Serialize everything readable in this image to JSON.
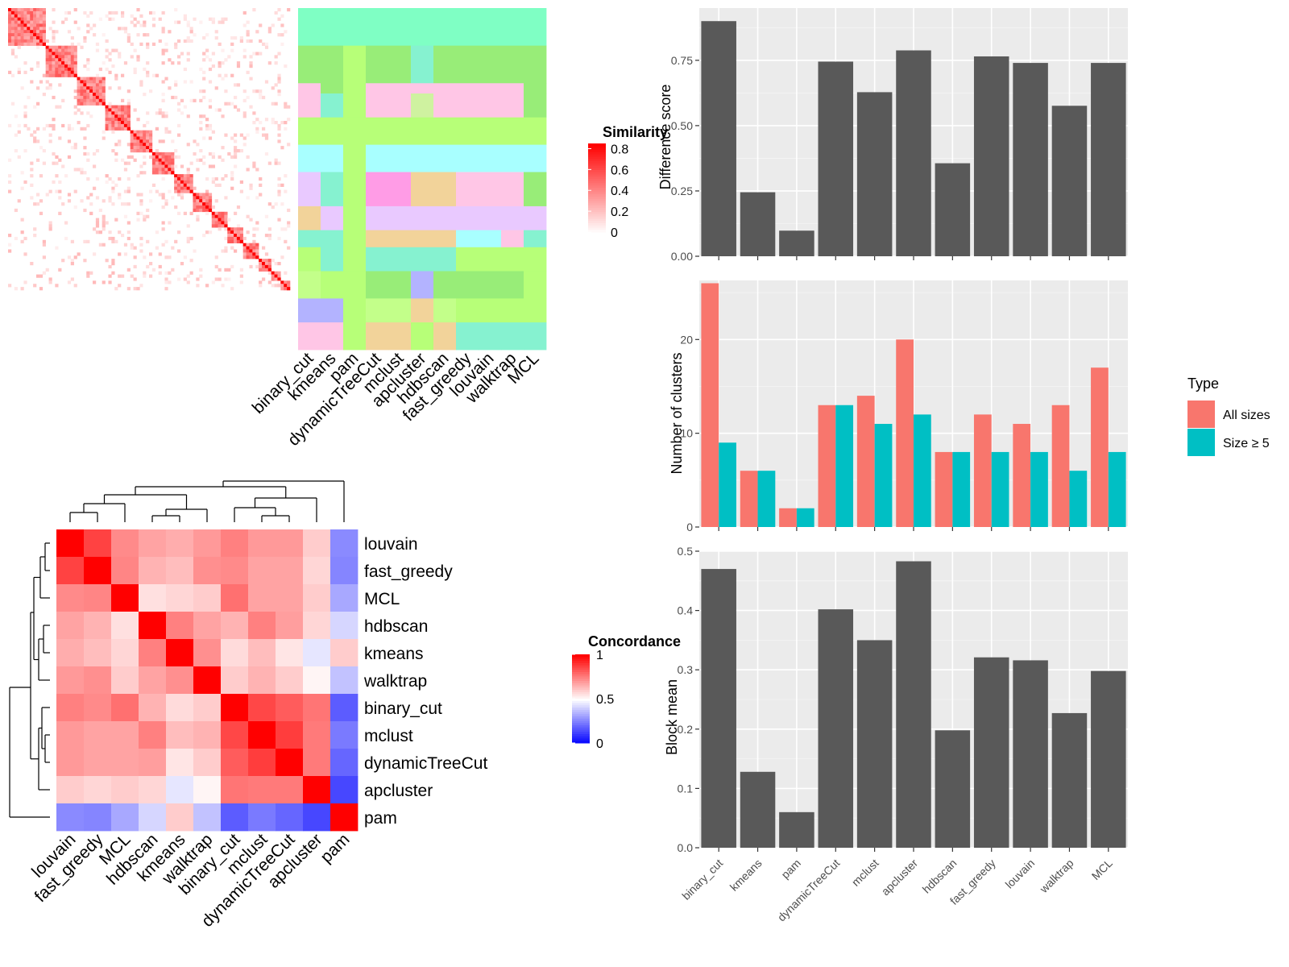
{
  "chart_data": [
    {
      "type": "heatmap",
      "name": "similarity-matrix",
      "legend_title": "Similarity",
      "legend_ticks": [
        "0",
        "0.2",
        "0.4",
        "0.6",
        "0.8"
      ],
      "legend_range": [
        0,
        0.85
      ],
      "size": 90,
      "blocks": [
        12,
        10,
        9,
        8,
        7,
        7,
        6,
        6,
        5,
        5,
        5,
        4,
        3,
        3
      ],
      "within_block_value": 0.55,
      "diagonal_value": 0.9,
      "background_value": 0.05
    },
    {
      "type": "heatmap",
      "name": "cluster-assignments",
      "methods": [
        "binary_cut",
        "kmeans",
        "pam",
        "dynamicTreeCut",
        "mclust",
        "apcluster",
        "hdbscan",
        "fast_greedy",
        "louvain",
        "walktrap",
        "MCL"
      ]
    },
    {
      "type": "bar",
      "name": "difference-score",
      "categories": [
        "binary_cut",
        "kmeans",
        "pam",
        "dynamicTreeCut",
        "mclust",
        "apcluster",
        "hdbscan",
        "fast_greedy",
        "louvain",
        "walktrap",
        "MCL"
      ],
      "values": [
        0.9,
        0.245,
        0.098,
        0.745,
        0.628,
        0.788,
        0.356,
        0.765,
        0.74,
        0.576,
        0.74
      ],
      "ylabel": "Difference score",
      "ylim": [
        0,
        0.95
      ],
      "yticks": [
        "0.00",
        "0.25",
        "0.50",
        "0.75"
      ],
      "color": "#595959",
      "grid": true
    },
    {
      "type": "bar",
      "name": "number-of-clusters",
      "categories": [
        "binary_cut",
        "kmeans",
        "pam",
        "dynamicTreeCut",
        "mclust",
        "apcluster",
        "hdbscan",
        "fast_greedy",
        "louvain",
        "walktrap",
        "MCL"
      ],
      "series": [
        {
          "name": "All sizes",
          "values": [
            26,
            6,
            2,
            13,
            14,
            20,
            8,
            12,
            11,
            13,
            17
          ],
          "color": "#F8766D"
        },
        {
          "name": "Size ≥ 5",
          "values": [
            9,
            6,
            2,
            13,
            11,
            12,
            8,
            8,
            8,
            6,
            8
          ],
          "color": "#00BFC4"
        }
      ],
      "ylabel": "Number of clusters",
      "ylim": [
        0,
        26.3
      ],
      "yticks": [
        "0",
        "10",
        "20"
      ],
      "legend_title": "Type",
      "legend_placement": "right",
      "grid": true
    },
    {
      "type": "bar",
      "name": "block-mean",
      "categories": [
        "binary_cut",
        "kmeans",
        "pam",
        "dynamicTreeCut",
        "mclust",
        "apcluster",
        "hdbscan",
        "fast_greedy",
        "louvain",
        "walktrap",
        "MCL"
      ],
      "values": [
        0.47,
        0.128,
        0.06,
        0.402,
        0.35,
        0.483,
        0.198,
        0.321,
        0.316,
        0.227,
        0.298
      ],
      "ylabel": "Block mean",
      "ylim": [
        0,
        0.5
      ],
      "yticks": [
        "0.0",
        "0.1",
        "0.2",
        "0.3",
        "0.4",
        "0.5"
      ],
      "color": "#595959",
      "grid": true
    },
    {
      "type": "heatmap",
      "name": "concordance",
      "legend_title": "Concordance",
      "legend_ticks": [
        "0",
        "0.5",
        "1"
      ],
      "rows": [
        "louvain",
        "fast_greedy",
        "MCL",
        "hdbscan",
        "kmeans",
        "walktrap",
        "binary_cut",
        "mclust",
        "dynamicTreeCut",
        "apcluster",
        "pam"
      ],
      "cols": [
        "louvain",
        "fast_greedy",
        "MCL",
        "hdbscan",
        "kmeans",
        "walktrap",
        "binary_cut",
        "mclust",
        "dynamicTreeCut",
        "apcluster",
        "pam"
      ],
      "values": [
        [
          1.0,
          0.87,
          0.73,
          0.68,
          0.66,
          0.7,
          0.75,
          0.7,
          0.7,
          0.6,
          0.27
        ],
        [
          0.87,
          1.0,
          0.74,
          0.65,
          0.63,
          0.72,
          0.73,
          0.68,
          0.68,
          0.58,
          0.26
        ],
        [
          0.73,
          0.74,
          1.0,
          0.56,
          0.58,
          0.6,
          0.78,
          0.68,
          0.68,
          0.6,
          0.33
        ],
        [
          0.68,
          0.65,
          0.56,
          1.0,
          0.75,
          0.68,
          0.65,
          0.75,
          0.69,
          0.58,
          0.42
        ],
        [
          0.66,
          0.63,
          0.58,
          0.75,
          1.0,
          0.72,
          0.57,
          0.63,
          0.55,
          0.45,
          0.6
        ],
        [
          0.7,
          0.72,
          0.6,
          0.68,
          0.72,
          1.0,
          0.6,
          0.65,
          0.6,
          0.52,
          0.38
        ],
        [
          0.75,
          0.73,
          0.78,
          0.65,
          0.57,
          0.6,
          1.0,
          0.86,
          0.82,
          0.77,
          0.18
        ],
        [
          0.7,
          0.68,
          0.68,
          0.75,
          0.63,
          0.65,
          0.86,
          1.0,
          0.88,
          0.76,
          0.24
        ],
        [
          0.7,
          0.68,
          0.68,
          0.69,
          0.55,
          0.6,
          0.82,
          0.88,
          1.0,
          0.76,
          0.2
        ],
        [
          0.6,
          0.58,
          0.6,
          0.58,
          0.45,
          0.52,
          0.77,
          0.76,
          0.76,
          1.0,
          0.14
        ],
        [
          0.27,
          0.26,
          0.33,
          0.42,
          0.6,
          0.38,
          0.18,
          0.24,
          0.2,
          0.14,
          1.0
        ]
      ]
    }
  ]
}
